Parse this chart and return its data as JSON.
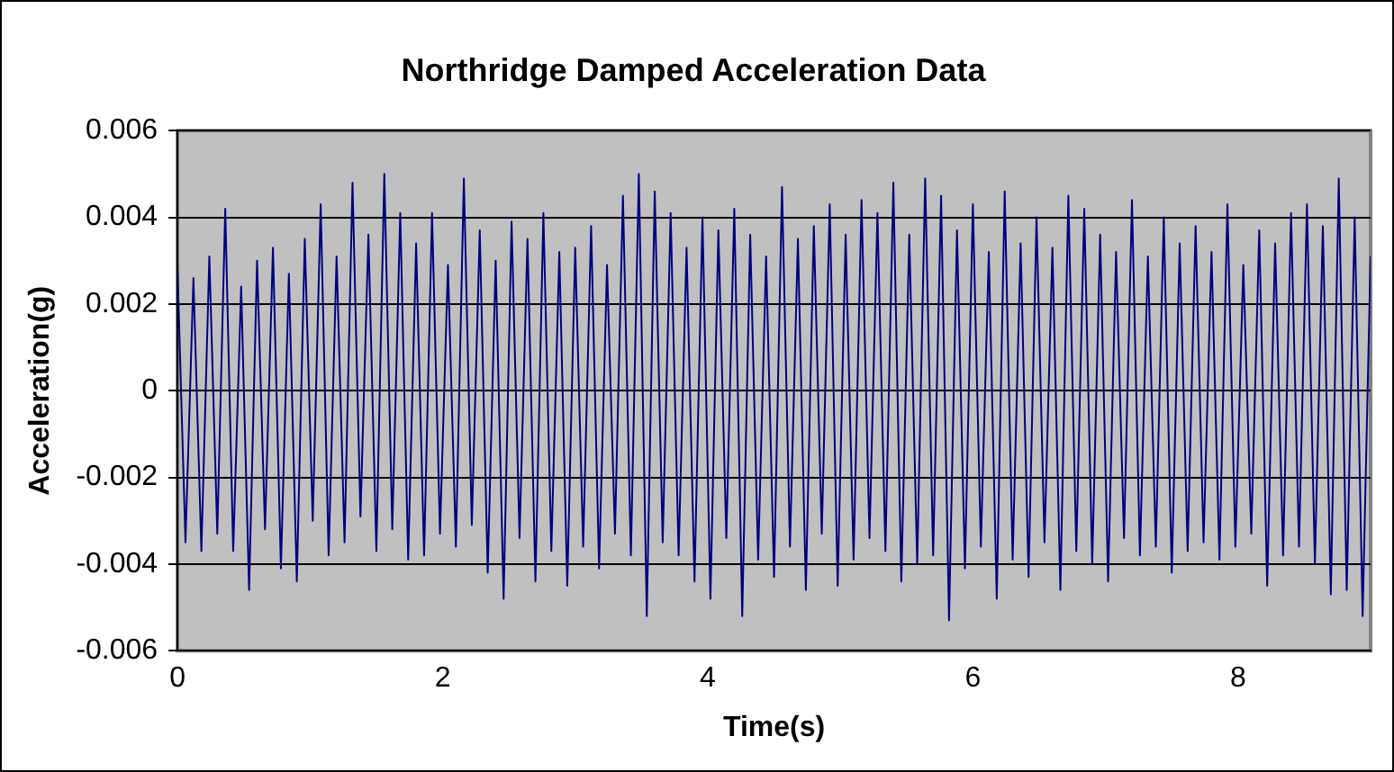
{
  "chart_data": {
    "type": "line",
    "title": "Northridge Damped Acceleration Data",
    "xlabel": "Time(s)",
    "ylabel": "Acceleration(g)",
    "x": [
      0,
      0.06,
      0.12,
      0.18,
      0.24,
      0.3,
      0.36,
      0.42,
      0.48,
      0.54,
      0.6,
      0.66,
      0.72,
      0.78,
      0.84,
      0.9,
      0.96,
      1.02,
      1.08,
      1.14,
      1.2,
      1.26,
      1.32,
      1.38,
      1.44,
      1.5,
      1.56,
      1.62,
      1.68,
      1.74,
      1.8,
      1.86,
      1.92,
      1.98,
      2.04,
      2.1,
      2.16,
      2.22,
      2.28,
      2.34,
      2.4,
      2.46,
      2.52,
      2.58,
      2.64,
      2.7,
      2.76,
      2.82,
      2.88,
      2.94,
      3.0,
      3.06,
      3.12,
      3.18,
      3.24,
      3.3,
      3.36,
      3.42,
      3.48,
      3.54,
      3.6,
      3.66,
      3.72,
      3.78,
      3.84,
      3.9,
      3.96,
      4.02,
      4.08,
      4.14,
      4.2,
      4.26,
      4.32,
      4.38,
      4.44,
      4.5,
      4.56,
      4.62,
      4.68,
      4.74,
      4.8,
      4.86,
      4.92,
      4.98,
      5.04,
      5.1,
      5.16,
      5.22,
      5.28,
      5.34,
      5.4,
      5.46,
      5.52,
      5.58,
      5.64,
      5.7,
      5.76,
      5.82,
      5.88,
      5.94,
      6.0,
      6.06,
      6.12,
      6.18,
      6.24,
      6.3,
      6.36,
      6.42,
      6.48,
      6.54,
      6.6,
      6.66,
      6.72,
      6.78,
      6.84,
      6.9,
      6.96,
      7.02,
      7.08,
      7.14,
      7.2,
      7.26,
      7.32,
      7.38,
      7.44,
      7.5,
      7.56,
      7.62,
      7.68,
      7.74,
      7.8,
      7.86,
      7.92,
      7.98,
      8.04,
      8.1,
      8.16,
      8.22,
      8.28,
      8.34,
      8.4,
      8.46,
      8.52,
      8.58,
      8.64,
      8.7,
      8.76,
      8.82,
      8.88,
      8.94,
      9.0
    ],
    "series": [
      {
        "color": "#000080",
        "values": [
          0.0028,
          -0.0035,
          0.0026,
          -0.0037,
          0.0031,
          -0.0033,
          0.0042,
          -0.0037,
          0.0024,
          -0.0046,
          0.003,
          -0.0032,
          0.0033,
          -0.0041,
          0.0027,
          -0.0044,
          0.0035,
          -0.003,
          0.0043,
          -0.0038,
          0.0031,
          -0.0035,
          0.0048,
          -0.0029,
          0.0036,
          -0.0037,
          0.005,
          -0.0032,
          0.0041,
          -0.0039,
          0.0034,
          -0.0038,
          0.0041,
          -0.0033,
          0.0029,
          -0.0036,
          0.0049,
          -0.0031,
          0.0037,
          -0.0042,
          0.003,
          -0.0048,
          0.0039,
          -0.0034,
          0.0035,
          -0.0044,
          0.0041,
          -0.0037,
          0.0032,
          -0.0045,
          0.0033,
          -0.0036,
          0.0038,
          -0.0041,
          0.0029,
          -0.0033,
          0.0045,
          -0.0038,
          0.005,
          -0.0052,
          0.0046,
          -0.0035,
          0.0041,
          -0.0038,
          0.0033,
          -0.0044,
          0.004,
          -0.0048,
          0.0037,
          -0.0034,
          0.0042,
          -0.0052,
          0.0036,
          -0.0039,
          0.0031,
          -0.0043,
          0.0047,
          -0.0036,
          0.0035,
          -0.0046,
          0.0038,
          -0.0033,
          0.0043,
          -0.0045,
          0.0036,
          -0.0039,
          0.0044,
          -0.0034,
          0.0041,
          -0.0037,
          0.0048,
          -0.0044,
          0.0036,
          -0.004,
          0.0049,
          -0.0038,
          0.0045,
          -0.0053,
          0.0037,
          -0.0041,
          0.0043,
          -0.0036,
          0.0032,
          -0.0048,
          0.0046,
          -0.0039,
          0.0034,
          -0.0043,
          0.004,
          -0.0035,
          0.0033,
          -0.0046,
          0.0045,
          -0.0037,
          0.0042,
          -0.004,
          0.0036,
          -0.0044,
          0.0032,
          -0.0034,
          0.0044,
          -0.0038,
          0.0031,
          -0.0036,
          0.004,
          -0.0042,
          0.0034,
          -0.0037,
          0.0038,
          -0.0035,
          0.0032,
          -0.0039,
          0.0043,
          -0.0036,
          0.0029,
          -0.0033,
          0.0037,
          -0.0045,
          0.0034,
          -0.0038,
          0.0041,
          -0.0036,
          0.0043,
          -0.004,
          0.0038,
          -0.0047,
          0.0049,
          -0.0046,
          0.004,
          -0.0052,
          0.0031
        ]
      }
    ],
    "xlim": [
      0,
      9
    ],
    "xticks": [
      0,
      2,
      4,
      6,
      8
    ],
    "ylim": [
      -0.006,
      0.006
    ],
    "yticks": [
      -0.006,
      -0.004,
      -0.002,
      0,
      0.002,
      0.004,
      0.006
    ],
    "grid": "y",
    "legend": false,
    "marker": "none",
    "line_style": "solid"
  }
}
